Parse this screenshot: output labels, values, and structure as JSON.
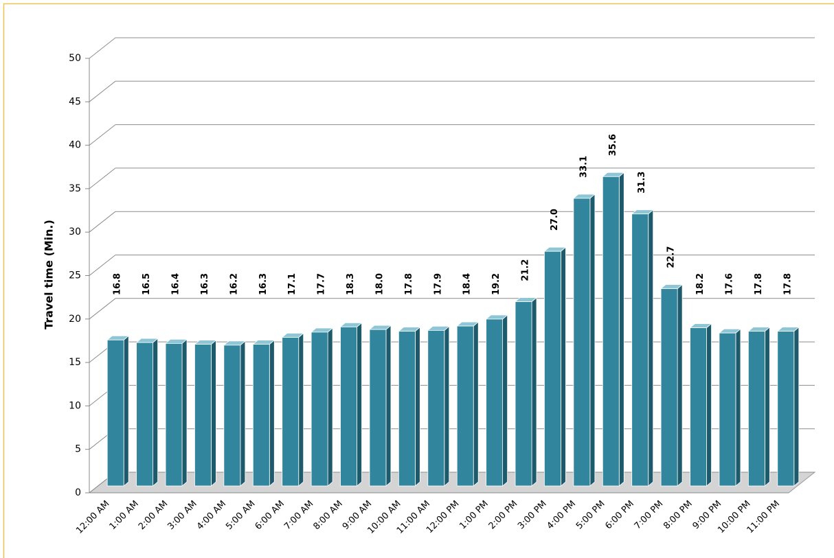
{
  "chart_data": {
    "type": "bar3d",
    "y_label": "Travel time (Min.)",
    "categories": [
      "12:00 AM",
      "1:00 AM",
      "2:00 AM",
      "3:00 AM",
      "4:00 AM",
      "5:00 AM",
      "6:00 AM",
      "7:00 AM",
      "8:00 AM",
      "9:00 AM",
      "10:00 AM",
      "11:00 AM",
      "12:00 PM",
      "1:00 PM",
      "2:00 PM",
      "3:00 PM",
      "4:00 PM",
      "5:00 PM",
      "6:00 PM",
      "7:00 PM",
      "8:00 PM",
      "9:00 PM",
      "10:00 PM",
      "11:00 PM"
    ],
    "values": [
      16.8,
      16.5,
      16.4,
      16.3,
      16.2,
      16.3,
      17.1,
      17.7,
      18.3,
      18.0,
      17.8,
      17.9,
      18.4,
      19.2,
      21.2,
      27.0,
      33.1,
      35.6,
      31.3,
      22.7,
      18.2,
      17.6,
      17.8,
      17.8
    ],
    "value_labels": [
      "16.8",
      "16.5",
      "16.4",
      "16.3",
      "16.2",
      "16.3",
      "17.1",
      "17.7",
      "18.3",
      "18.0",
      "17.8",
      "17.9",
      "18.4",
      "19.2",
      "21.2",
      "27.0",
      "33.1",
      "35.6",
      "31.3",
      "22.7",
      "18.2",
      "17.6",
      "17.8",
      "17.8"
    ],
    "color": "#31859c",
    "ylim": [
      0,
      50
    ],
    "yticks": [
      0,
      5,
      10,
      15,
      20,
      25,
      30,
      35,
      40,
      45,
      50
    ],
    "grid": true
  }
}
